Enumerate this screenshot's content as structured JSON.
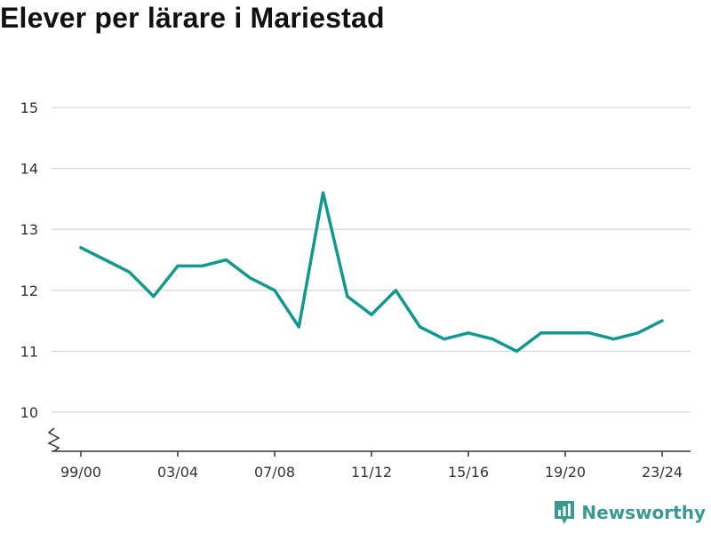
{
  "title": "Elever per lärare i Mariestad",
  "brand": {
    "name": "Newsworthy",
    "icon": "newsworthy-logo-icon"
  },
  "colors": {
    "line": "#12998f",
    "grid": "#d9d9d9",
    "axis": "#333333",
    "brand": "#3a9a92"
  },
  "chart_data": {
    "type": "line",
    "title": "Elever per lärare i Mariestad",
    "xlabel": "",
    "ylabel": "",
    "ylim": [
      9.4,
      15
    ],
    "yticks": [
      10,
      11,
      12,
      13,
      14,
      15
    ],
    "axis_break": true,
    "grid": true,
    "x": [
      "99/00",
      "00/01",
      "01/02",
      "02/03",
      "03/04",
      "04/05",
      "05/06",
      "06/07",
      "07/08",
      "08/09",
      "09/10",
      "10/11",
      "11/12",
      "12/13",
      "13/14",
      "14/15",
      "15/16",
      "16/17",
      "17/18",
      "18/19",
      "19/20",
      "20/21",
      "21/22",
      "22/23",
      "23/24"
    ],
    "xticks": [
      "99/00",
      "03/04",
      "07/08",
      "11/12",
      "15/16",
      "19/20",
      "23/24"
    ],
    "series": [
      {
        "values": [
          12.7,
          12.5,
          12.3,
          11.9,
          12.4,
          12.4,
          12.5,
          12.2,
          12.0,
          11.4,
          13.6,
          11.9,
          11.6,
          12.0,
          11.4,
          11.2,
          11.3,
          11.2,
          11.0,
          11.3,
          11.3,
          11.3,
          11.2,
          11.3,
          11.5
        ]
      }
    ]
  }
}
